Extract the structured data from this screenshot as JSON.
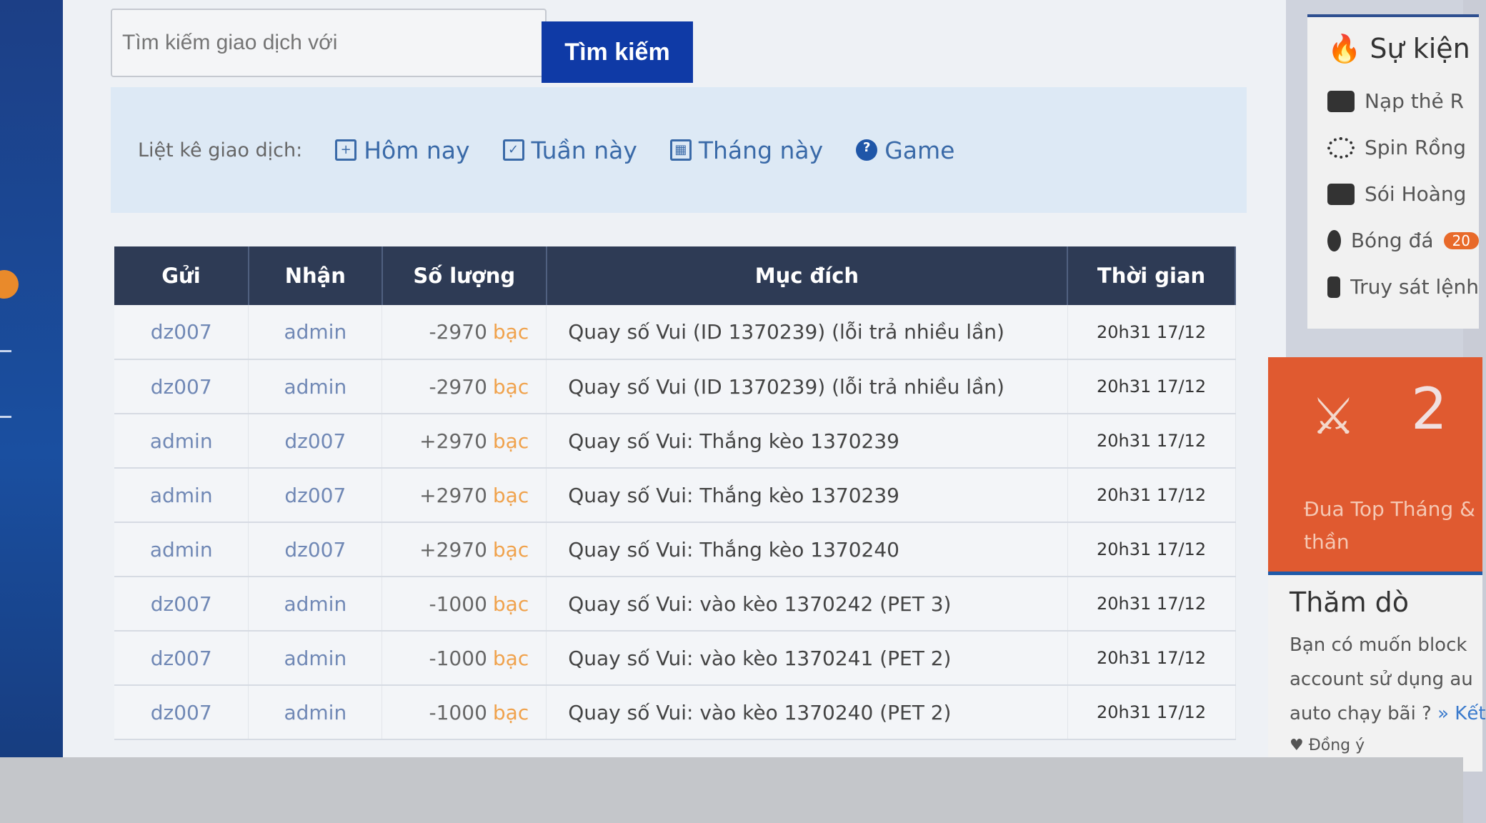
{
  "search": {
    "placeholder": "Tìm kiếm giao dịch với",
    "button": "Tìm kiếm"
  },
  "filter": {
    "label": "Liệt kê giao dịch:",
    "items": [
      {
        "label": "Hôm nay",
        "icon": "calendar-plus-icon"
      },
      {
        "label": "Tuần này",
        "icon": "calendar-check-icon"
      },
      {
        "label": "Tháng này",
        "icon": "calendar-grid-icon"
      },
      {
        "label": "Game",
        "icon": "question-circle-icon"
      }
    ]
  },
  "table": {
    "headers": [
      "Gửi",
      "Nhận",
      "Số lượng",
      "Mục đích",
      "Thời gian"
    ],
    "unit": "bạc",
    "rows": [
      [
        "dz007",
        "admin",
        "-2970",
        "Quay số Vui (ID 1370239) (lỗi trả nhiều lần)",
        "20h31 17/12"
      ],
      [
        "dz007",
        "admin",
        "-2970",
        "Quay số Vui (ID 1370239) (lỗi trả nhiều lần)",
        "20h31 17/12"
      ],
      [
        "admin",
        "dz007",
        "+2970",
        "Quay số Vui: Thắng kèo 1370239",
        "20h31 17/12"
      ],
      [
        "admin",
        "dz007",
        "+2970",
        "Quay số Vui: Thắng kèo 1370239",
        "20h31 17/12"
      ],
      [
        "admin",
        "dz007",
        "+2970",
        "Quay số Vui: Thắng kèo 1370240",
        "20h31 17/12"
      ],
      [
        "dz007",
        "admin",
        "-1000",
        "Quay số Vui: vào kèo 1370242 (PET 3)",
        "20h31 17/12"
      ],
      [
        "dz007",
        "admin",
        "-1000",
        "Quay số Vui: vào kèo 1370241 (PET 2)",
        "20h31 17/12"
      ],
      [
        "dz007",
        "admin",
        "-1000",
        "Quay số Vui: vào kèo 1370240 (PET 2)",
        "20h31 17/12"
      ]
    ]
  },
  "events": {
    "title": "Sự kiện",
    "items": [
      "Nạp thẻ R",
      "Spin Rồng",
      "Sói Hoàng",
      "Bóng đá",
      "Truy sát lệnh"
    ],
    "badge": "20"
  },
  "promo": {
    "number": "2",
    "text1": "Đua Top Tháng &",
    "text2": "thần"
  },
  "poll": {
    "title": "Thăm dò",
    "line1": "Bạn có muốn block",
    "line2": "account sử dụng au",
    "line3": "auto chạy bãi ?",
    "result_link": "» Kết",
    "agree": "Đồng ý"
  },
  "colors": {
    "accent": "#0f3aa6",
    "header": "#2e3b55",
    "promo": "#e05a30",
    "unit": "#f0a24c"
  }
}
